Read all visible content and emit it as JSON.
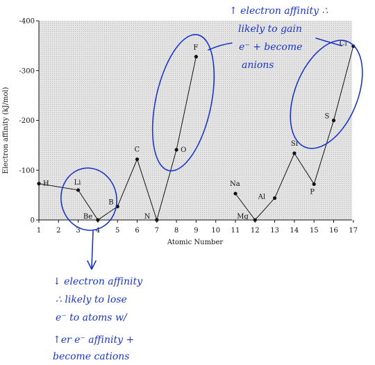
{
  "chart_data": {
    "type": "line",
    "xlabel": "Atomic Number",
    "ylabel": "Electron affinity (kJ/mol)",
    "xlim": [
      1,
      17
    ],
    "ylim": [
      0,
      -400
    ],
    "xticks": [
      1,
      2,
      3,
      4,
      5,
      6,
      7,
      8,
      9,
      10,
      11,
      12,
      13,
      14,
      15,
      16,
      17
    ],
    "yticks": [
      0,
      -100,
      -200,
      -300,
      -400
    ],
    "grid": false,
    "series": [
      {
        "points": [
          {
            "x": 1,
            "y": -73,
            "label": "H"
          },
          {
            "x": 3,
            "y": -60,
            "label": "Li"
          },
          {
            "x": 4,
            "y": 0,
            "label": "Be"
          },
          {
            "x": 5,
            "y": -27,
            "label": "B"
          },
          {
            "x": 6,
            "y": -122,
            "label": "C"
          },
          {
            "x": 7,
            "y": 0,
            "label": "N"
          },
          {
            "x": 8,
            "y": -141,
            "label": "O"
          },
          {
            "x": 9,
            "y": -328,
            "label": "F"
          }
        ]
      },
      {
        "points": [
          {
            "x": 11,
            "y": -53,
            "label": "Na"
          },
          {
            "x": 12,
            "y": 0,
            "label": "Mg"
          },
          {
            "x": 13,
            "y": -44,
            "label": "Al"
          },
          {
            "x": 14,
            "y": -134,
            "label": "Si"
          },
          {
            "x": 15,
            "y": -72,
            "label": "P"
          },
          {
            "x": 16,
            "y": -200,
            "label": "S"
          },
          {
            "x": 17,
            "y": -349,
            "label": "Cl"
          }
        ]
      }
    ]
  },
  "annotations": {
    "top_lines": [
      "↑ electron affinity ∴",
      "likely to gain",
      "e⁻ + become",
      "anions"
    ],
    "bottom_lines": [
      "↓ electron affinity",
      "∴ likely to lose",
      "e⁻ to atoms w/",
      "↑er e⁻ affinity +",
      "become cations"
    ]
  },
  "colors": {
    "ink": "#1b35c8",
    "plot_bg": "#dedede",
    "data": "#111111"
  }
}
